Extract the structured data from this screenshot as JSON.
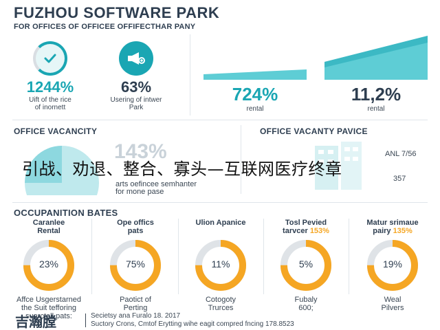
{
  "header": {
    "title": "FUZHOU SOFTWARE PARK",
    "subtitle": "FOR OFFICES OF OFFICEE OFFIFECTHAR PANY"
  },
  "top_stats": [
    {
      "value": "1244%",
      "label_1": "Uift of the rice",
      "label_2": "of inornett",
      "icon": "check-icon"
    },
    {
      "value": "63%",
      "label_1": "Usering of intwer",
      "label_2": "Park",
      "icon": "megaphone-icon"
    }
  ],
  "rentals": [
    {
      "value": "724%",
      "label": "rental",
      "color": "#1aa6b3"
    },
    {
      "value": "11,2%",
      "label": "rental",
      "color": "#2e3e50"
    }
  ],
  "vacancy": {
    "heading": "OFFICE VACANCITY",
    "big_value": "143%",
    "lines": [
      "arts oefincee semhanter",
      "for mone pase"
    ]
  },
  "vacancy_price": {
    "heading": "OFFICE VACANTY PAVICE",
    "side_1": "ANL 7/56",
    "side_2": "357"
  },
  "overlay_text": "引战、劝退、整合、寡头—互联网医疗终章",
  "occupation": {
    "heading": "OCCUPANITION BATES",
    "cards": [
      {
        "label_1": "Caranlee",
        "label_2": "Rental",
        "highlight": "",
        "value": "23%",
        "percent": 23,
        "desc_1": "Affce Usgerstarned",
        "desc_2": "the Suit tefforing",
        "desc_3": "suarctell pats:"
      },
      {
        "label_1": "Ope offics",
        "label_2": "pats",
        "highlight": "",
        "value": "75%",
        "percent": 75,
        "desc_1": "Paotict of",
        "desc_2": "Perting",
        "desc_3": ""
      },
      {
        "label_1": "Ulion Apanice",
        "label_2": "",
        "highlight": "",
        "value": "11%",
        "percent": 11,
        "desc_1": "Cotogoty",
        "desc_2": "Trurces",
        "desc_3": ""
      },
      {
        "label_1": "Tosl Pevied",
        "label_2": "tarvcer",
        "highlight": "153%",
        "value": "5%",
        "percent": 5,
        "desc_1": "Fubaly",
        "desc_2": "600;",
        "desc_3": ""
      },
      {
        "label_1": "Matur srimaue",
        "label_2": "pairy",
        "highlight": "135%",
        "value": "19%",
        "percent": 19,
        "desc_1": "Weal",
        "desc_2": "Pilvers",
        "desc_3": ""
      }
    ]
  },
  "footer": {
    "logo": "吉瀚膛",
    "line_1": "Secietsy ana Furalo 18. 2017",
    "line_2": "Suctory Crons, Cmtof Erytting wihe eagit compred fncing 178.8523"
  },
  "colors": {
    "accent_teal": "#1aa6b3",
    "accent_orange": "#f5a623",
    "dark_text": "#2e3e50",
    "light_teal": "#d6f0f2"
  }
}
